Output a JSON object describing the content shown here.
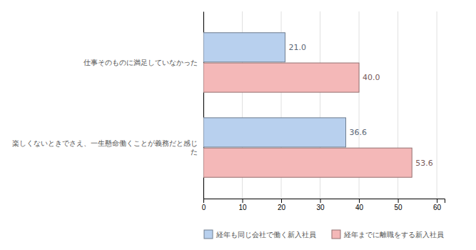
{
  "chart_data": {
    "type": "bar",
    "orientation": "horizontal",
    "categories": [
      "楽しくないときでさえ、一生懸命働くことが義務だと感じ\nた",
      "仕事そのものに満足していなかった"
    ],
    "series": [
      {
        "name": "経年も同じ会社で働く新入社員",
        "color": "#b8d0ee",
        "values": [
          36.6,
          21.0
        ],
        "value_labels": [
          "36.6",
          "21.0"
        ]
      },
      {
        "name": "経年までに離職をする新入社員",
        "color": "#f4b8b8",
        "values": [
          53.6,
          40.0
        ],
        "value_labels": [
          "53.6",
          "40.0"
        ]
      }
    ],
    "xlim": [
      0,
      62
    ],
    "xticks": [
      0,
      10,
      20,
      30,
      40,
      50,
      60
    ],
    "grid": true,
    "legend": "bottom",
    "data_labels": true
  }
}
